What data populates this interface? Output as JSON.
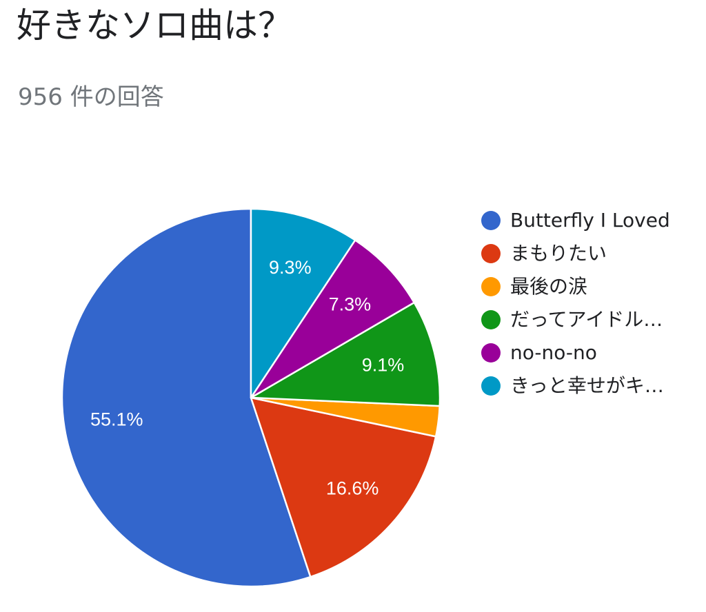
{
  "title": "好きなソロ曲は？",
  "subtitle": "956 件の回答",
  "chart_data": {
    "type": "pie",
    "title": "好きなソロ曲は？",
    "subtitle": "956 件の回答",
    "legend_position": "right",
    "slices": [
      {
        "label": "Butterfly I Loved",
        "value": 55.1,
        "display": "55.1%",
        "color": "#3366cc"
      },
      {
        "label": "まもりたい",
        "value": 16.6,
        "display": "16.6%",
        "color": "#dc3912"
      },
      {
        "label": "最後の涙",
        "value": 2.6,
        "display": "",
        "color": "#ff9900"
      },
      {
        "label": "だってアイドル…",
        "value": 9.1,
        "display": "9.1%",
        "color": "#109618"
      },
      {
        "label": "no-no-no",
        "value": 7.3,
        "display": "7.3%",
        "color": "#990099"
      },
      {
        "label": "きっと幸せがキ…",
        "value": 9.3,
        "display": "9.3%",
        "color": "#0099c6"
      }
    ]
  }
}
